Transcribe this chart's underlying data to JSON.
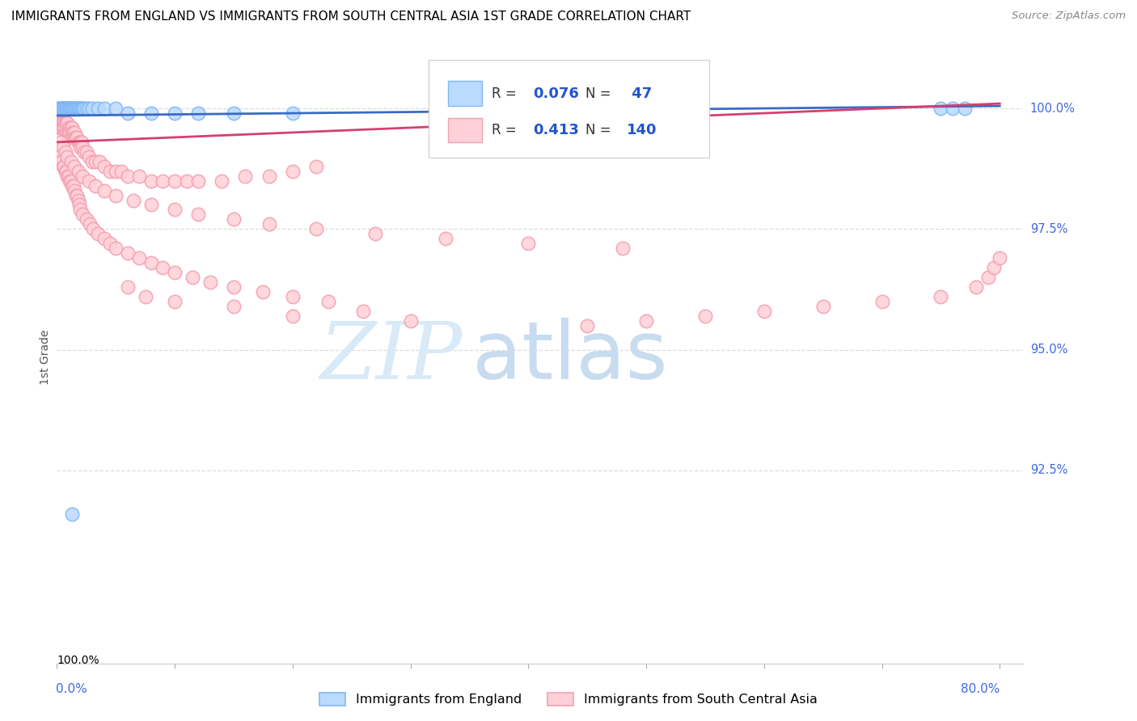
{
  "title": "IMMIGRANTS FROM ENGLAND VS IMMIGRANTS FROM SOUTH CENTRAL ASIA 1ST GRADE CORRELATION CHART",
  "source": "Source: ZipAtlas.com",
  "ylabel": "1st Grade",
  "ylabel_right_labels": [
    "100.0%",
    "97.5%",
    "95.0%",
    "92.5%"
  ],
  "ylabel_right_values": [
    1.0,
    0.975,
    0.95,
    0.925
  ],
  "xmin": 0.0,
  "xmax": 0.8,
  "ymin": 0.885,
  "ymax": 1.012,
  "legend_label_blue": "Immigrants from England",
  "legend_label_pink": "Immigrants from South Central Asia",
  "blue_color": "#7EB8F7",
  "pink_color": "#F4A0B0",
  "blue_fill_color": "#BBDAFF",
  "pink_fill_color": "#FFD0D8",
  "blue_line_color": "#3A6BC4",
  "pink_line_color": "#D44070",
  "blue_line_y0": 0.9985,
  "blue_line_y1": 1.0005,
  "pink_line_y0": 0.993,
  "pink_line_y1": 1.001,
  "watermark_zip": "ZIP",
  "watermark_atlas": "atlas",
  "watermark_color": "#D8EAF8",
  "grid_color": "#DDDDDD",
  "grid_style": "--",
  "blue_scatter_x": [
    0.001,
    0.002,
    0.003,
    0.004,
    0.004,
    0.005,
    0.005,
    0.006,
    0.007,
    0.007,
    0.008,
    0.008,
    0.009,
    0.01,
    0.01,
    0.011,
    0.012,
    0.012,
    0.013,
    0.013,
    0.014,
    0.015,
    0.015,
    0.016,
    0.017,
    0.018,
    0.019,
    0.02,
    0.021,
    0.022,
    0.023,
    0.025,
    0.027,
    0.03,
    0.035,
    0.04,
    0.05,
    0.06,
    0.08,
    0.1,
    0.12,
    0.15,
    0.2,
    0.75,
    0.76,
    0.77,
    0.013
  ],
  "blue_scatter_y": [
    1.0,
    1.0,
    1.0,
    1.0,
    1.0,
    1.0,
    1.0,
    1.0,
    1.0,
    1.0,
    1.0,
    1.0,
    1.0,
    1.0,
    1.0,
    1.0,
    1.0,
    1.0,
    1.0,
    1.0,
    1.0,
    1.0,
    1.0,
    1.0,
    1.0,
    1.0,
    1.0,
    1.0,
    1.0,
    1.0,
    1.0,
    1.0,
    1.0,
    1.0,
    1.0,
    1.0,
    1.0,
    0.999,
    0.999,
    0.999,
    0.999,
    0.999,
    0.999,
    1.0,
    1.0,
    1.0,
    0.916
  ],
  "pink_scatter_x": [
    0.001,
    0.001,
    0.002,
    0.002,
    0.002,
    0.003,
    0.003,
    0.004,
    0.004,
    0.005,
    0.005,
    0.006,
    0.006,
    0.007,
    0.007,
    0.008,
    0.008,
    0.009,
    0.009,
    0.01,
    0.01,
    0.011,
    0.011,
    0.012,
    0.012,
    0.013,
    0.013,
    0.014,
    0.015,
    0.015,
    0.016,
    0.017,
    0.018,
    0.019,
    0.02,
    0.02,
    0.021,
    0.022,
    0.023,
    0.025,
    0.027,
    0.03,
    0.033,
    0.036,
    0.04,
    0.045,
    0.05,
    0.055,
    0.06,
    0.07,
    0.08,
    0.09,
    0.1,
    0.11,
    0.12,
    0.14,
    0.16,
    0.18,
    0.2,
    0.22,
    0.001,
    0.002,
    0.003,
    0.004,
    0.005,
    0.006,
    0.007,
    0.008,
    0.009,
    0.01,
    0.011,
    0.012,
    0.013,
    0.014,
    0.015,
    0.016,
    0.017,
    0.018,
    0.019,
    0.02,
    0.022,
    0.025,
    0.028,
    0.031,
    0.035,
    0.04,
    0.045,
    0.05,
    0.06,
    0.07,
    0.08,
    0.09,
    0.1,
    0.115,
    0.13,
    0.15,
    0.175,
    0.2,
    0.23,
    0.26,
    0.003,
    0.005,
    0.007,
    0.009,
    0.012,
    0.015,
    0.018,
    0.022,
    0.027,
    0.033,
    0.04,
    0.05,
    0.065,
    0.08,
    0.1,
    0.12,
    0.15,
    0.18,
    0.22,
    0.27,
    0.33,
    0.4,
    0.48,
    0.06,
    0.075,
    0.1,
    0.15,
    0.2,
    0.3,
    0.45,
    0.5,
    0.55,
    0.6,
    0.65,
    0.7,
    0.75,
    0.78,
    0.79,
    0.795,
    0.8
  ],
  "pink_scatter_y": [
    0.998,
    0.997,
    0.998,
    0.997,
    0.996,
    0.998,
    0.997,
    0.997,
    0.996,
    0.997,
    0.996,
    0.997,
    0.996,
    0.997,
    0.995,
    0.997,
    0.996,
    0.997,
    0.995,
    0.996,
    0.995,
    0.996,
    0.995,
    0.996,
    0.994,
    0.996,
    0.995,
    0.995,
    0.995,
    0.994,
    0.994,
    0.994,
    0.993,
    0.993,
    0.993,
    0.992,
    0.993,
    0.992,
    0.991,
    0.991,
    0.99,
    0.989,
    0.989,
    0.989,
    0.988,
    0.987,
    0.987,
    0.987,
    0.986,
    0.986,
    0.985,
    0.985,
    0.985,
    0.985,
    0.985,
    0.985,
    0.986,
    0.986,
    0.987,
    0.988,
    0.99,
    0.99,
    0.989,
    0.989,
    0.988,
    0.988,
    0.987,
    0.987,
    0.986,
    0.986,
    0.985,
    0.985,
    0.984,
    0.984,
    0.983,
    0.982,
    0.982,
    0.981,
    0.98,
    0.979,
    0.978,
    0.977,
    0.976,
    0.975,
    0.974,
    0.973,
    0.972,
    0.971,
    0.97,
    0.969,
    0.968,
    0.967,
    0.966,
    0.965,
    0.964,
    0.963,
    0.962,
    0.961,
    0.96,
    0.958,
    0.993,
    0.992,
    0.991,
    0.99,
    0.989,
    0.988,
    0.987,
    0.986,
    0.985,
    0.984,
    0.983,
    0.982,
    0.981,
    0.98,
    0.979,
    0.978,
    0.977,
    0.976,
    0.975,
    0.974,
    0.973,
    0.972,
    0.971,
    0.963,
    0.961,
    0.96,
    0.959,
    0.957,
    0.956,
    0.955,
    0.956,
    0.957,
    0.958,
    0.959,
    0.96,
    0.961,
    0.963,
    0.965,
    0.967,
    0.969
  ]
}
